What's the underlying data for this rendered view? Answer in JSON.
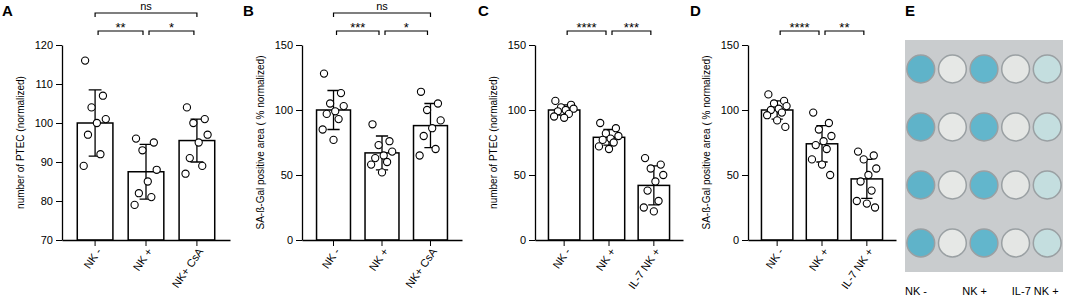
{
  "chart_data": [
    {
      "type": "bar",
      "title": "A",
      "y_label": "number of PTEC (normalized)",
      "categories": [
        "NK -",
        "NK +",
        "NK+ CsA"
      ],
      "values": [
        100,
        87.5,
        95.5
      ],
      "errors": [
        8.5,
        7,
        5.5
      ],
      "points": [
        [
          116,
          107,
          104,
          101,
          100,
          97,
          92,
          89
        ],
        [
          96,
          95,
          93,
          88,
          85,
          82,
          81,
          79
        ],
        [
          104,
          101,
          100,
          97,
          95,
          91,
          89,
          87
        ]
      ],
      "color": "#ffffff",
      "ylim": [
        70,
        120
      ],
      "yticks": [
        70,
        80,
        90,
        100,
        110,
        120
      ],
      "annotations": [
        {
          "categories": [
            "NK -",
            "NK+ CsA"
          ],
          "label": "ns"
        },
        {
          "categories": [
            "NK -",
            "NK +"
          ],
          "label": "**"
        },
        {
          "categories": [
            "NK +",
            "NK+ CsA"
          ],
          "label": "*"
        }
      ]
    },
    {
      "type": "bar",
      "title": "B",
      "y_label": "SA-ß-Gal positive area ( % normalized)",
      "categories": [
        "NK -",
        "NK +",
        "NK+ CsA"
      ],
      "values": [
        100,
        67,
        88
      ],
      "errors": [
        15,
        13,
        17
      ],
      "points": [
        [
          128,
          113,
          105,
          103,
          99,
          97,
          93,
          85,
          77
        ],
        [
          89,
          76,
          73,
          68,
          65,
          63,
          60,
          58,
          52
        ],
        [
          114,
          105,
          100,
          92,
          86,
          80,
          70,
          65
        ]
      ],
      "color": "#ffffff",
      "ylim": [
        0,
        150
      ],
      "yticks": [
        0,
        50,
        100,
        150
      ],
      "annotations": [
        {
          "categories": [
            "NK -",
            "NK+ CsA"
          ],
          "label": "ns"
        },
        {
          "categories": [
            "NK -",
            "NK +"
          ],
          "label": "***"
        },
        {
          "categories": [
            "NK +",
            "NK+ CsA"
          ],
          "label": "*"
        }
      ]
    },
    {
      "type": "bar",
      "title": "C",
      "y_label": "number of PTEC (normalized)",
      "categories": [
        "NK -",
        "NK +",
        "IL-7 NK +"
      ],
      "values": [
        100,
        79,
        42
      ],
      "errors": [
        4,
        6,
        15
      ],
      "points": [
        [
          107,
          104,
          102,
          101,
          100,
          99,
          97,
          95,
          94
        ],
        [
          90,
          86,
          82,
          80,
          78,
          77,
          75,
          72,
          70
        ],
        [
          63,
          58,
          55,
          50,
          45,
          38,
          30,
          25,
          22
        ]
      ],
      "color": "#ffffff",
      "ylim": [
        0,
        150
      ],
      "yticks": [
        0,
        50,
        100,
        150
      ],
      "annotations": [
        {
          "categories": [
            "NK -",
            "NK +"
          ],
          "label": "****"
        },
        {
          "categories": [
            "NK +",
            "IL-7 NK +"
          ],
          "label": "***"
        }
      ]
    },
    {
      "type": "bar",
      "title": "D",
      "y_label": "SA-ß-Gal positive area ( % normalized)",
      "categories": [
        "NK -",
        "NK +",
        "IL-7 NK +"
      ],
      "values": [
        100,
        74,
        47
      ],
      "errors": [
        7,
        14,
        15
      ],
      "points": [
        [
          112,
          107,
          105,
          103,
          101,
          100,
          98,
          96,
          92,
          87
        ],
        [
          98,
          90,
          85,
          80,
          76,
          73,
          70,
          62,
          58,
          50
        ],
        [
          68,
          65,
          62,
          55,
          50,
          45,
          38,
          30,
          28,
          25
        ]
      ],
      "color": "#ffffff",
      "ylim": [
        0,
        150
      ],
      "yticks": [
        0,
        50,
        100,
        150
      ],
      "annotations": [
        {
          "categories": [
            "NK -",
            "NK +"
          ],
          "label": "****"
        },
        {
          "categories": [
            "NK +",
            "IL-7 NK +"
          ],
          "label": "**"
        }
      ]
    }
  ],
  "image_panel": {
    "label": "E",
    "columns": [
      "NK -",
      "NK +",
      "IL-7 NK +"
    ]
  }
}
